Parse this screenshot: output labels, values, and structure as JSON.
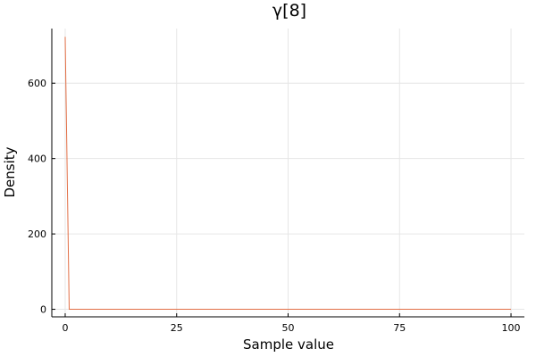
{
  "chart_data": {
    "type": "line",
    "title": "γ[8]",
    "xlabel": "Sample value",
    "ylabel": "Density",
    "xlim": [
      -3,
      103
    ],
    "ylim": [
      -20,
      745
    ],
    "xticks": [
      0,
      25,
      50,
      75,
      100
    ],
    "yticks": [
      0,
      200,
      400,
      600
    ],
    "grid": true,
    "legend": "none",
    "series": [
      {
        "color": "#e26f46",
        "x": [
          0.0,
          0.9,
          1.0,
          100.0
        ],
        "y": [
          723,
          0,
          0,
          0
        ]
      }
    ]
  }
}
